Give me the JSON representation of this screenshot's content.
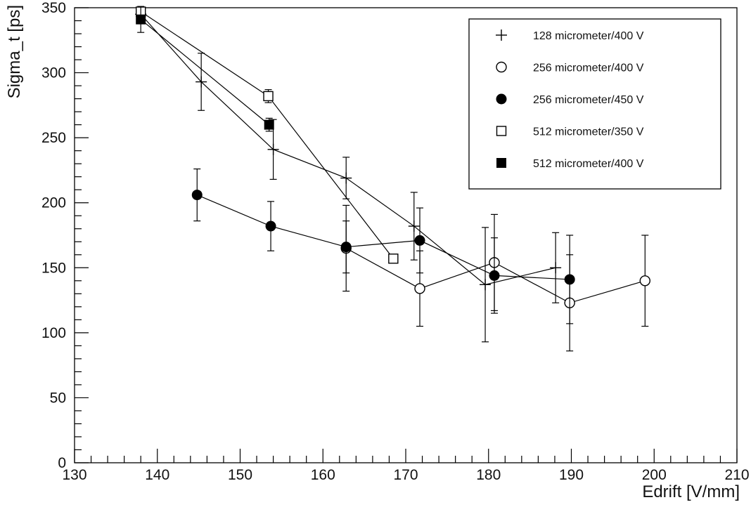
{
  "chart_data": {
    "type": "scatter",
    "title": "",
    "xlabel": "Edrift [V/mm]",
    "ylabel": "Sigma_t [ps]",
    "xlim": [
      130,
      210
    ],
    "ylim": [
      0,
      350
    ],
    "x_ticks": [
      "130",
      "140",
      "150",
      "160",
      "170",
      "180",
      "190",
      "200",
      "210"
    ],
    "y_ticks": [
      "0",
      "50",
      "100",
      "150",
      "200",
      "250",
      "300",
      "350"
    ],
    "legend_position": "top-right",
    "grid": false,
    "series": [
      {
        "name": "128 micrometer/400 V",
        "marker": "plus",
        "points": [
          {
            "x": 138,
            "y": 345,
            "err": 0
          },
          {
            "x": 145.3,
            "y": 293,
            "err": 22
          },
          {
            "x": 154,
            "y": 241,
            "err": 23
          },
          {
            "x": 162.8,
            "y": 219,
            "err": 16
          },
          {
            "x": 171,
            "y": 182,
            "err": 26
          },
          {
            "x": 179.6,
            "y": 137,
            "err": 44
          },
          {
            "x": 188.1,
            "y": 150,
            "err": 27
          }
        ]
      },
      {
        "name": "256 micrometer/400 V",
        "marker": "open-circle",
        "points": [
          {
            "x": 162.8,
            "y": 165,
            "err": 33
          },
          {
            "x": 171.7,
            "y": 134,
            "err": 29
          },
          {
            "x": 180.7,
            "y": 154,
            "err": 37
          },
          {
            "x": 189.8,
            "y": 123,
            "err": 37
          },
          {
            "x": 198.9,
            "y": 140,
            "err": 35
          }
        ]
      },
      {
        "name": "256 micrometer/450 V",
        "marker": "filled-circle",
        "points": [
          {
            "x": 144.8,
            "y": 206,
            "err": 20
          },
          {
            "x": 153.7,
            "y": 182,
            "err": 19
          },
          {
            "x": 162.8,
            "y": 166,
            "err": 20
          },
          {
            "x": 171.7,
            "y": 171,
            "err": 25
          },
          {
            "x": 180.7,
            "y": 144,
            "err": 29
          },
          {
            "x": 189.8,
            "y": 141,
            "err": 34
          }
        ]
      },
      {
        "name": "512 micrometer/350 V",
        "marker": "open-square",
        "points": [
          {
            "x": 138,
            "y": 347,
            "err": 0
          },
          {
            "x": 153.4,
            "y": 282,
            "err": 5
          },
          {
            "x": 168.5,
            "y": 157,
            "err": 0
          }
        ]
      },
      {
        "name": "512 micrometer/400 V",
        "marker": "filled-square",
        "points": [
          {
            "x": 138,
            "y": 341,
            "err": 10
          },
          {
            "x": 153.5,
            "y": 260,
            "err": 5
          }
        ]
      }
    ]
  }
}
